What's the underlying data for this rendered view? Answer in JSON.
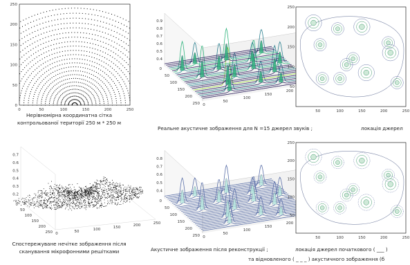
{
  "captions": {
    "grid_line1": "Нерівномірна координатна сітка",
    "grid_line2": "контрольованої території 250 м * 250 м",
    "real_image": "Реальне акустичне зображення для N =15 джерел звуків ;",
    "source_location": "локація джерел",
    "observed_line1": "Спостережуване нечітке зображення після",
    "observed_line2": "сканування мікрофонними решітками",
    "reconstructed": "Акустичне зображення після реконструкції ;",
    "location_line1": "локація джерел початкового ( ___ )",
    "location_line2": "та відновленого ( _ _ _ ) акустичного зображення (б"
  },
  "chart_data": [
    {
      "type": "scatter",
      "x_ticks": [
        "0",
        "50",
        "100",
        "150",
        "200",
        "250"
      ],
      "y_ticks": [
        "0",
        "50",
        "100",
        "150",
        "200",
        "250"
      ],
      "xlim": [
        0,
        250
      ],
      "ylim": [
        0,
        250
      ]
    },
    {
      "type": "surface",
      "z_ticks": [
        "0.4",
        "0.5",
        "0.6",
        "0.7",
        "0.8",
        "0.9"
      ],
      "x_ticks": [
        "0",
        "50",
        "100",
        "150",
        "200",
        "250"
      ],
      "y_ticks": [
        "0",
        "50",
        "100",
        "150",
        "200",
        "250"
      ]
    },
    {
      "type": "contour",
      "x_ticks": [
        "50",
        "100",
        "150",
        "200",
        "250"
      ],
      "y_ticks": [
        "50",
        "100",
        "150",
        "200",
        "250"
      ],
      "xlim": [
        0,
        250
      ],
      "ylim": [
        0,
        250
      ]
    },
    {
      "type": "scatter3d",
      "z_ticks": [
        "0.2",
        "0.3",
        "0.4",
        "0.5",
        "0.6",
        "0.7"
      ],
      "x_ticks": [
        "0",
        "50",
        "100",
        "150",
        "200",
        "250"
      ],
      "y_ticks": [
        "0",
        "50",
        "100",
        "150",
        "200",
        "250"
      ]
    },
    {
      "type": "surface",
      "z_ticks": [
        "0.4",
        "0.5",
        "0.6",
        "0.7",
        "0.8"
      ],
      "x_ticks": [
        "0",
        "50",
        "100",
        "150",
        "200",
        "250"
      ],
      "y_ticks": [
        "0",
        "50",
        "100",
        "150",
        "200",
        "250"
      ]
    },
    {
      "type": "contour",
      "x_ticks": [
        "50",
        "100",
        "150",
        "200",
        "250"
      ],
      "y_ticks": [
        "50",
        "100",
        "150",
        "200",
        "250"
      ],
      "xlim": [
        0,
        250
      ],
      "ylim": [
        0,
        250
      ]
    }
  ]
}
